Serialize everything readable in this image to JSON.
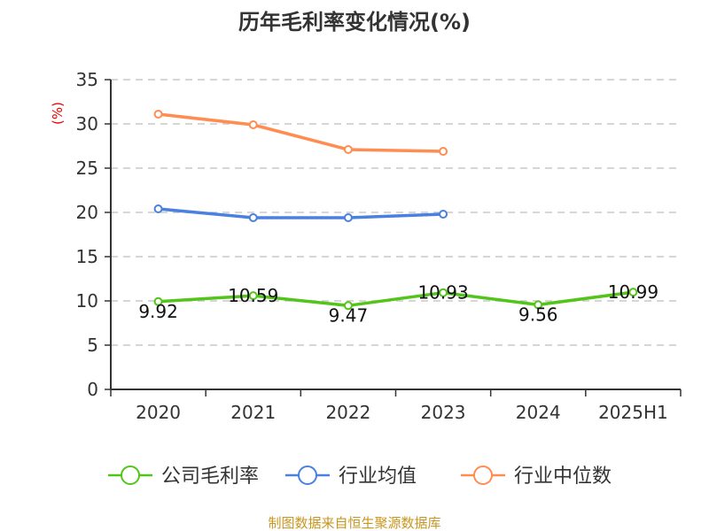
{
  "chart_data": {
    "type": "line",
    "title": "历年毛利率变化情况(%)",
    "ylabel": "(%)",
    "xlabel": "",
    "categories": [
      "2020",
      "2021",
      "2022",
      "2023",
      "2024",
      "2025H1"
    ],
    "ylim": [
      0,
      35
    ],
    "yticks": [
      0,
      5,
      10,
      15,
      20,
      25,
      30,
      35
    ],
    "grid": true,
    "legend_position": "bottom",
    "series": [
      {
        "name": "公司毛利率",
        "color": "#52c41a",
        "values": [
          9.92,
          10.59,
          9.47,
          10.93,
          9.56,
          10.99
        ],
        "labels": [
          "9.92",
          "10.59",
          "9.47",
          "10.93",
          "9.56",
          "10.99"
        ]
      },
      {
        "name": "行业均值",
        "color": "#4a80e0",
        "values": [
          20.4,
          19.4,
          19.4,
          19.8,
          null,
          null
        ]
      },
      {
        "name": "行业中位数",
        "color": "#ff8c50",
        "values": [
          31.1,
          29.9,
          27.1,
          26.9,
          null,
          null
        ]
      }
    ]
  },
  "source": "制图数据来自恒生聚源数据库"
}
